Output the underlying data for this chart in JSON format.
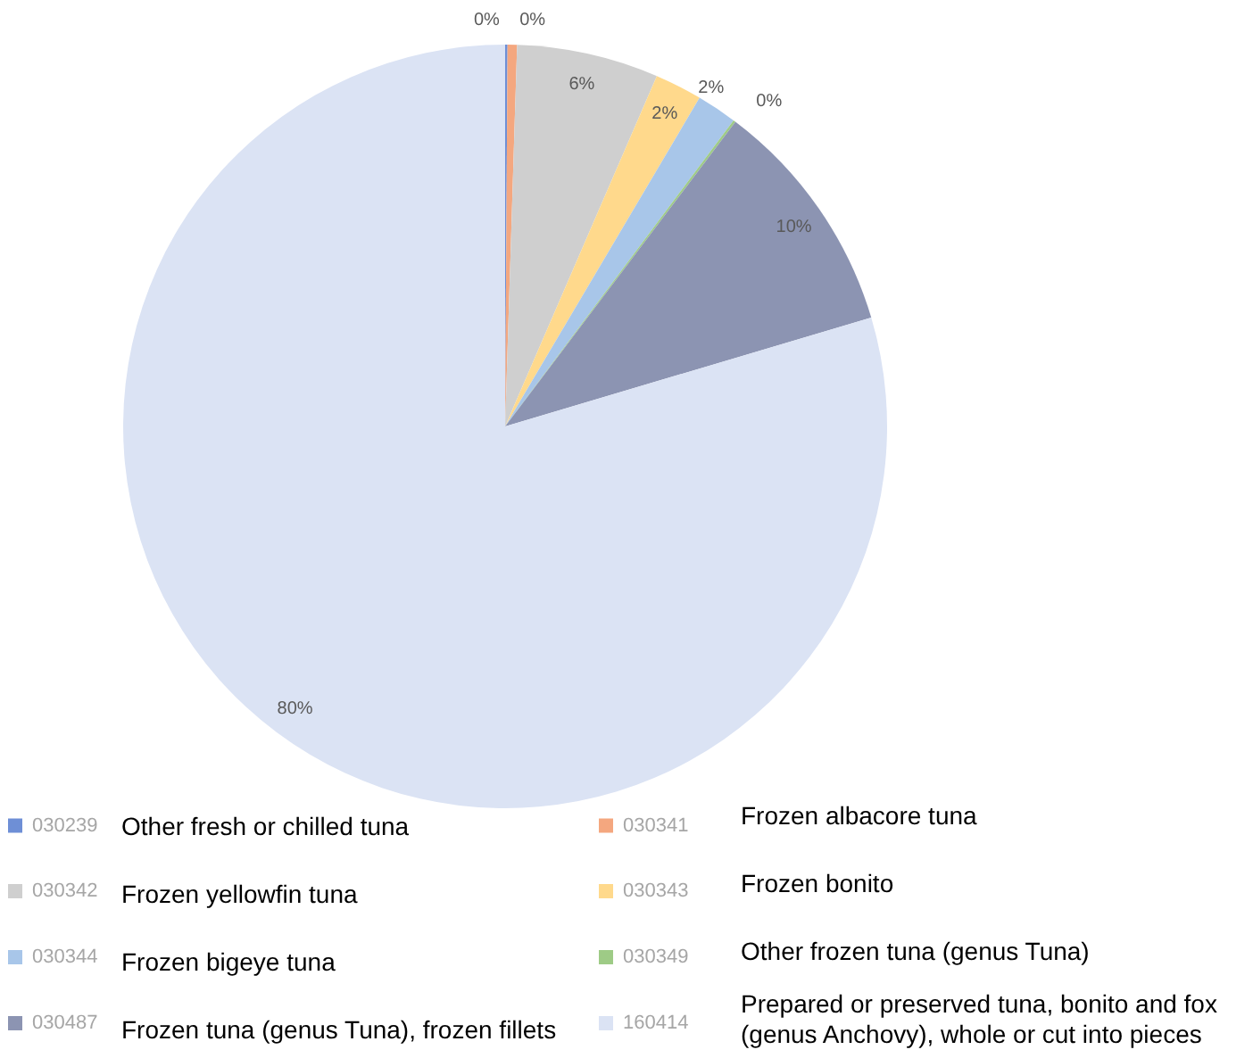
{
  "chart_data": {
    "type": "pie",
    "categories": [
      "030239",
      "030341",
      "030342",
      "030343",
      "030344",
      "030349",
      "030487",
      "160414"
    ],
    "values": [
      0.1,
      0.4,
      6,
      2,
      1.7,
      0.1,
      10.1,
      79.6
    ],
    "colors": [
      "#6e8fd6",
      "#f4a77f",
      "#cfcfcf",
      "#ffd98c",
      "#a8c6e9",
      "#9ecb86",
      "#8c94b2",
      "#dbe3f4"
    ],
    "value_labels": [
      "0%",
      "0%",
      "6%",
      "2%",
      "2%",
      "0%",
      "10%",
      "80%"
    ],
    "annotations": [
      "Other fresh or chilled tuna",
      "Frozen albacore tuna",
      "Frozen yellowfin tuna",
      "Frozen bonito",
      "Frozen bigeye tuna",
      "Other frozen tuna (genus Tuna)",
      "Frozen tuna (genus Tuna), frozen fillets",
      "Prepared or preserved tuna, bonito and fox (genus Anchovy), whole or cut into pieces"
    ],
    "legend": "bottom"
  }
}
